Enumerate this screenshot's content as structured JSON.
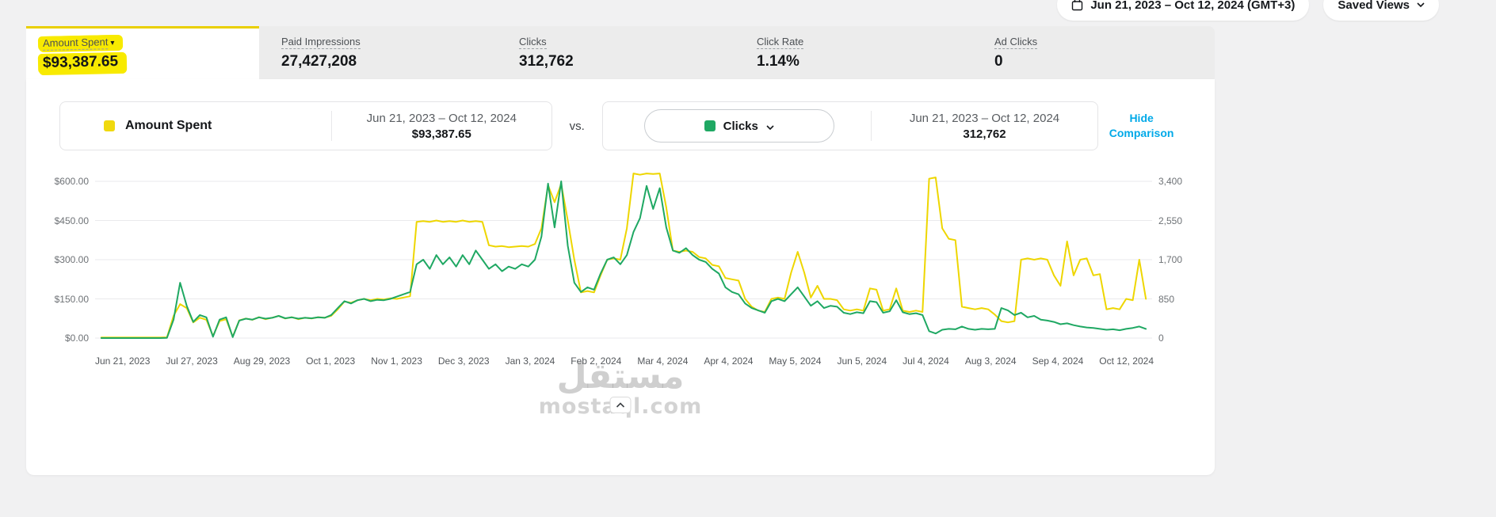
{
  "topbar": {
    "date_range": "Jun 21, 2023 – Oct 12, 2024 (GMT+3)",
    "saved_views_label": "Saved Views"
  },
  "metrics": {
    "tabs": [
      {
        "label": "Amount Spent",
        "value": "$93,387.65"
      },
      {
        "label": "Paid Impressions",
        "value": "27,427,208"
      },
      {
        "label": "Clicks",
        "value": "312,762"
      },
      {
        "label": "Click Rate",
        "value": "1.14%"
      },
      {
        "label": "Ad Clicks",
        "value": "0"
      }
    ]
  },
  "comparison": {
    "primary": {
      "legend_label": "Amount Spent",
      "legend_color": "#f0d90e",
      "date_range": "Jun 21, 2023 – Oct 12, 2024",
      "value": "$93,387.65"
    },
    "vs_label": "vs.",
    "secondary": {
      "legend_label": "Clicks",
      "legend_color": "#1fa863",
      "date_range": "Jun 21, 2023 – Oct 12, 2024",
      "value": "312,762"
    },
    "hide_comparison_label": "Hide Comparison"
  },
  "chart_data": {
    "type": "line",
    "x_labels": [
      "Jun 21, 2023",
      "Jul 27, 2023",
      "Aug 29, 2023",
      "Oct 1, 2023",
      "Nov 1, 2023",
      "Dec 3, 2023",
      "Jan 3, 2024",
      "Feb 2, 2024",
      "Mar 4, 2024",
      "Apr 4, 2024",
      "May 5, 2024",
      "Jun 5, 2024",
      "Jul 4, 2024",
      "Aug 3, 2024",
      "Sep 4, 2024",
      "Oct 12, 2024"
    ],
    "left_axis": {
      "ticks": [
        "$0.00",
        "$150.00",
        "$300.00",
        "$450.00",
        "$600.00"
      ],
      "tick_values": [
        0,
        150,
        300,
        450,
        600
      ],
      "max": 600
    },
    "right_axis": {
      "ticks": [
        "0",
        "850",
        "1,700",
        "2,550",
        "3,400"
      ],
      "tick_values": [
        0,
        850,
        1700,
        2550,
        3400
      ],
      "max": 3400
    },
    "grid": true,
    "series": [
      {
        "name": "Amount Spent",
        "axis": "left",
        "color": "#eed600",
        "values": [
          2,
          2,
          2,
          2,
          2,
          2,
          2,
          2,
          2,
          2,
          3,
          85,
          130,
          115,
          60,
          78,
          70,
          8,
          65,
          72,
          5,
          68,
          75,
          70,
          80,
          72,
          78,
          85,
          75,
          80,
          72,
          78,
          75,
          80,
          78,
          85,
          110,
          140,
          135,
          145,
          150,
          145,
          150,
          148,
          152,
          150,
          155,
          160,
          445,
          448,
          445,
          450,
          445,
          448,
          445,
          450,
          445,
          448,
          445,
          355,
          350,
          352,
          348,
          350,
          352,
          350,
          360,
          420,
          585,
          520,
          590,
          450,
          300,
          175,
          180,
          175,
          240,
          300,
          305,
          300,
          420,
          630,
          625,
          630,
          628,
          630,
          500,
          335,
          330,
          335,
          330,
          310,
          305,
          280,
          275,
          230,
          225,
          220,
          150,
          120,
          105,
          100,
          150,
          155,
          150,
          250,
          330,
          250,
          155,
          200,
          150,
          150,
          145,
          110,
          105,
          110,
          105,
          190,
          185,
          105,
          110,
          190,
          105,
          100,
          105,
          100,
          610,
          615,
          420,
          380,
          375,
          120,
          115,
          110,
          115,
          110,
          90,
          65,
          60,
          65,
          300,
          305,
          300,
          305,
          300,
          240,
          200,
          370,
          240,
          300,
          305,
          240,
          245,
          110,
          115,
          110,
          150,
          145,
          300,
          150
        ]
      },
      {
        "name": "Clicks",
        "axis": "right",
        "color": "#1fa863",
        "values": [
          0,
          0,
          0,
          0,
          0,
          0,
          0,
          0,
          0,
          0,
          5,
          400,
          1200,
          700,
          350,
          500,
          450,
          30,
          400,
          450,
          20,
          380,
          420,
          400,
          450,
          420,
          440,
          480,
          430,
          450,
          420,
          440,
          430,
          450,
          440,
          500,
          650,
          800,
          750,
          820,
          850,
          800,
          830,
          820,
          850,
          900,
          950,
          1000,
          1600,
          1700,
          1500,
          1800,
          1600,
          1750,
          1550,
          1800,
          1600,
          1900,
          1700,
          1500,
          1600,
          1450,
          1550,
          1500,
          1600,
          1550,
          1700,
          2200,
          3350,
          2400,
          3400,
          2000,
          1200,
          1000,
          1100,
          1050,
          1400,
          1700,
          1750,
          1600,
          1800,
          2300,
          2600,
          3300,
          2800,
          3250,
          2400,
          1900,
          1850,
          1950,
          1800,
          1700,
          1650,
          1500,
          1400,
          1100,
          1000,
          950,
          750,
          650,
          600,
          550,
          800,
          850,
          800,
          950,
          1100,
          900,
          700,
          800,
          650,
          700,
          680,
          550,
          520,
          560,
          540,
          800,
          780,
          550,
          580,
          820,
          560,
          520,
          540,
          500,
          150,
          100,
          180,
          200,
          190,
          250,
          200,
          180,
          200,
          190,
          200,
          650,
          600,
          500,
          550,
          450,
          480,
          400,
          380,
          350,
          300,
          320,
          280,
          250,
          230,
          220,
          200,
          180,
          190,
          170,
          200,
          220,
          250,
          200
        ]
      }
    ]
  },
  "watermark": {
    "arabic": "مستقل",
    "latin": "mostaql.com"
  }
}
